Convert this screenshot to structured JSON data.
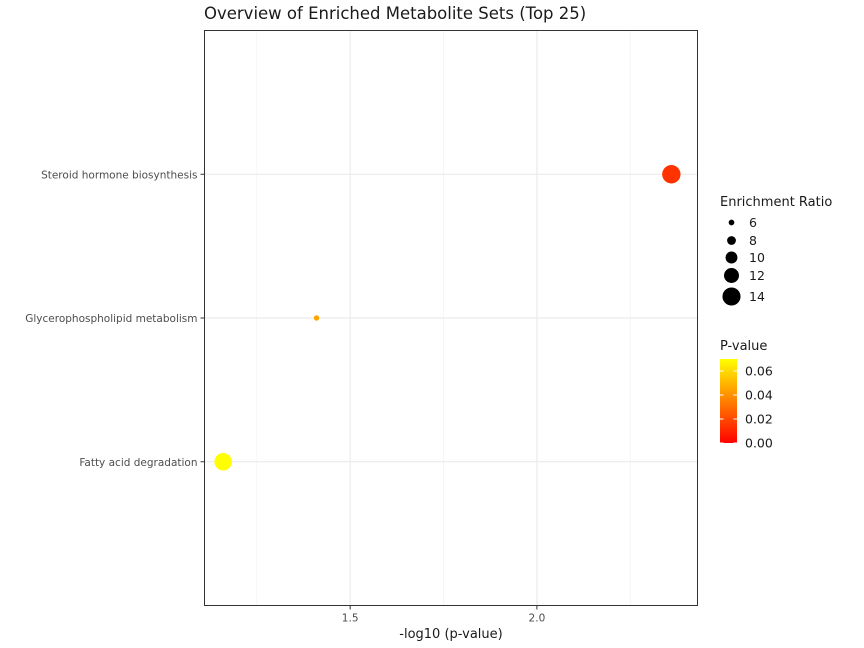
{
  "chart_data": {
    "type": "scatter",
    "title": "Overview of Enriched Metabolite Sets (Top 25)",
    "xlabel": "-log10 (p-value)",
    "ylabel": "",
    "xlim": [
      1.11,
      2.43
    ],
    "x_ticks": [
      1.5,
      2.0
    ],
    "x_tick_labels": [
      "1.5",
      "2.0"
    ],
    "categories": [
      "Steroid hormone biosynthesis",
      "Glycerophospholipid metabolism",
      "Fatty acid degradation"
    ],
    "points": [
      {
        "category": "Steroid hormone biosynthesis",
        "x": 2.36,
        "enrichment_ratio": 14.2,
        "p_value": 0.0044,
        "color": "#ff3300"
      },
      {
        "category": "Glycerophospholipid metabolism",
        "x": 1.41,
        "enrichment_ratio": 5.8,
        "p_value": 0.039,
        "color": "#ffa500"
      },
      {
        "category": "Fatty acid degradation",
        "x": 1.16,
        "enrichment_ratio": 13.6,
        "p_value": 0.069,
        "color": "#ffff00"
      }
    ],
    "grid": true,
    "legend_position": "right",
    "size_legend": {
      "title": "Enrichment Ratio",
      "values": [
        6,
        8,
        10,
        12,
        14
      ],
      "labels": [
        "6",
        "8",
        "10",
        "12",
        "14"
      ]
    },
    "color_legend": {
      "title": "P-value",
      "range": [
        0.0,
        0.07
      ],
      "ticks": [
        0.0,
        0.02,
        0.04,
        0.06
      ],
      "tick_labels": [
        "0.00",
        "0.02",
        "0.04",
        "0.06"
      ],
      "low_color": "#ff0000",
      "high_color": "#ffff00"
    }
  }
}
